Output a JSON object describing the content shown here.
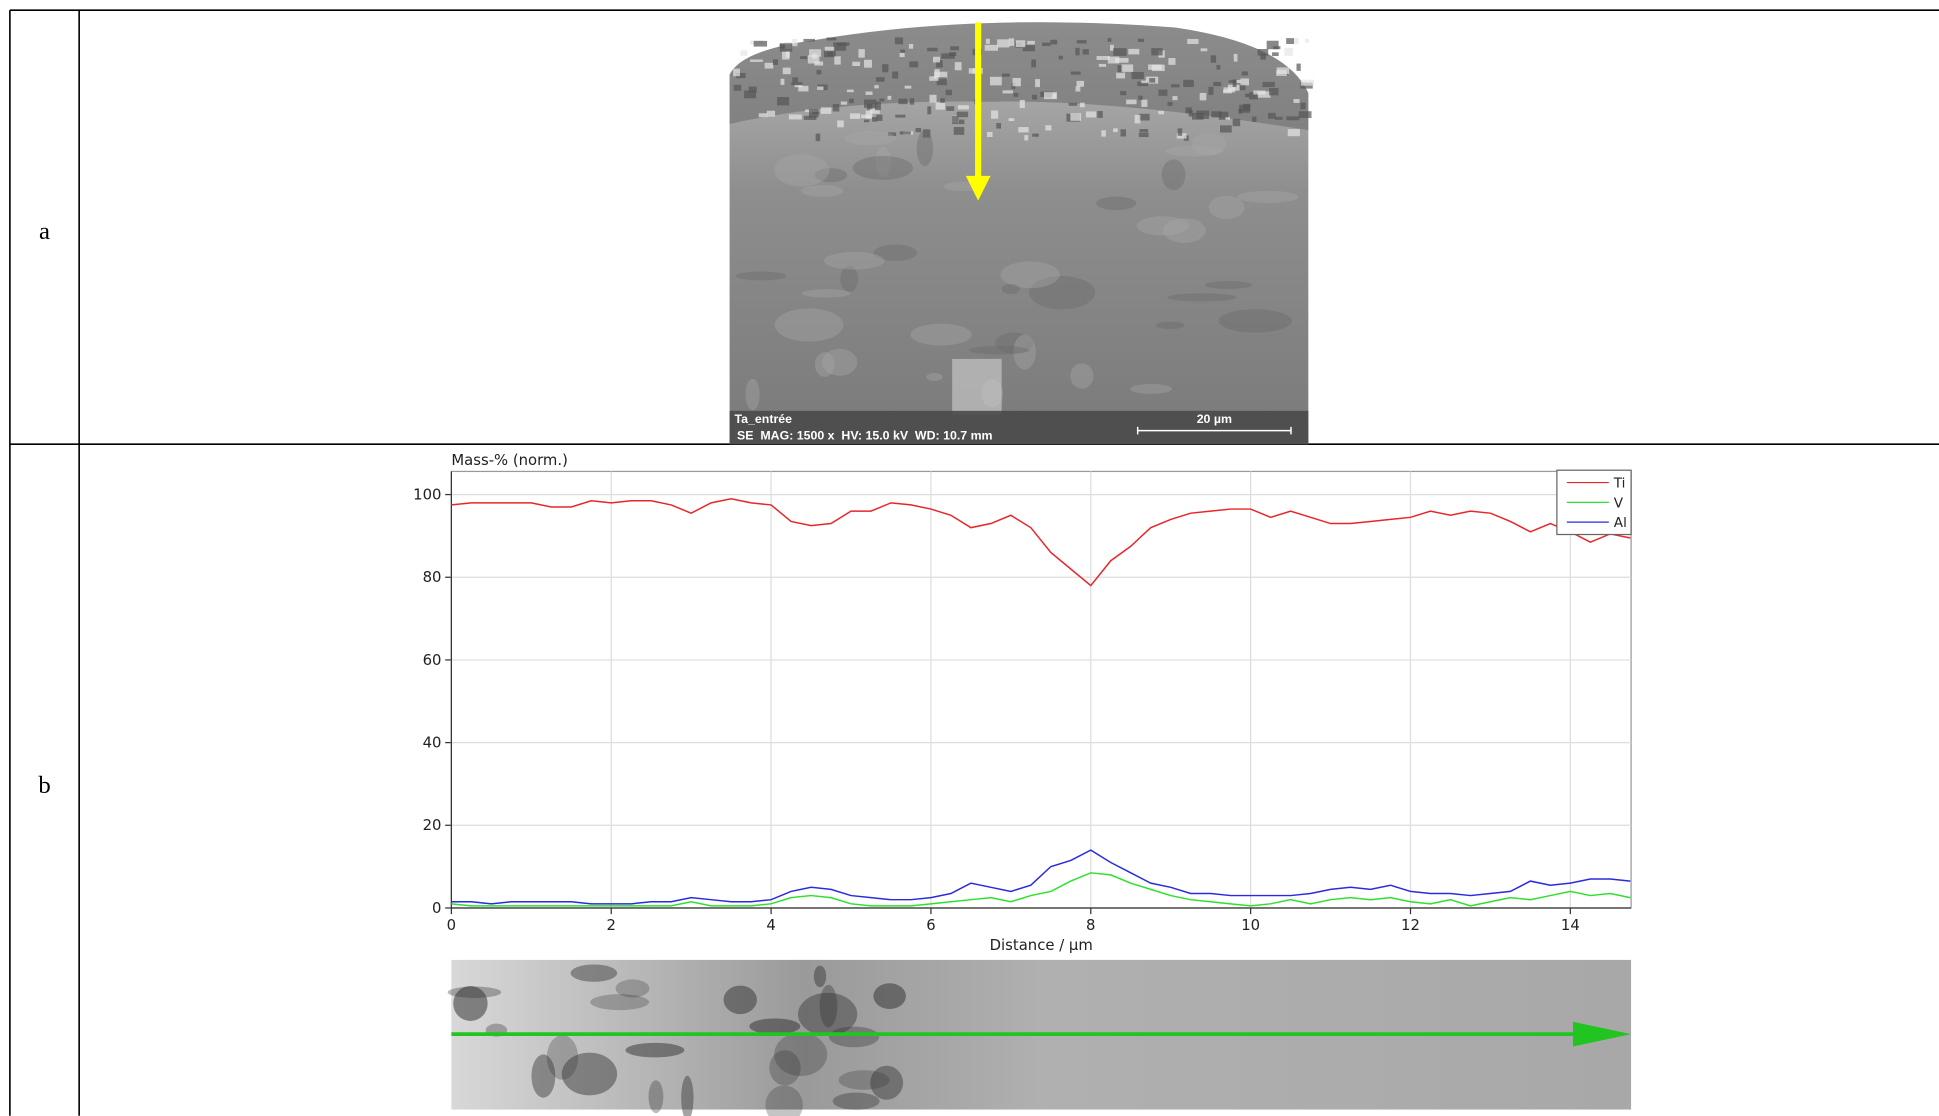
{
  "table": {
    "rows": [
      "a",
      "b"
    ]
  },
  "image": {
    "sample": "Ta_entrée",
    "info": "SE  MAG: 1500 x  HV: 15.0 kV  WD: 10.7 mm",
    "scale_bar": "20 µm"
  },
  "chart_data": {
    "type": "line",
    "y_label": "Mass-% (norm.)",
    "x_label": "Distance / µm",
    "x": [
      0,
      0.25,
      0.5,
      0.75,
      1,
      1.25,
      1.5,
      1.75,
      2,
      2.25,
      2.5,
      2.75,
      3,
      3.25,
      3.5,
      3.75,
      4,
      4.25,
      4.5,
      4.75,
      5,
      5.25,
      5.5,
      5.75,
      6,
      6.25,
      6.5,
      6.75,
      7,
      7.25,
      7.5,
      7.75,
      8,
      8.25,
      8.5,
      8.75,
      9,
      9.25,
      9.5,
      9.75,
      10,
      10.25,
      10.5,
      10.75,
      11,
      11.25,
      11.5,
      11.75,
      12,
      12.25,
      12.5,
      12.75,
      13,
      13.25,
      13.5,
      13.75,
      14,
      14.25,
      14.5,
      14.75
    ],
    "series": [
      {
        "name": "Ti",
        "color": "#e8262a",
        "values": [
          97.5,
          98,
          98,
          98,
          98,
          97,
          97,
          98.5,
          98,
          98.5,
          98.5,
          97.5,
          95.5,
          98,
          99,
          98,
          97.5,
          93.5,
          92.5,
          93,
          96,
          96,
          98,
          97.5,
          96.5,
          95,
          92,
          93,
          95,
          92,
          86,
          82,
          78,
          84,
          87.5,
          92,
          94,
          95.5,
          96,
          96.5,
          96.5,
          94.5,
          96,
          94.5,
          93,
          93,
          93.5,
          94,
          94.5,
          96,
          95,
          96,
          95.5,
          93.5,
          91,
          93,
          91,
          88.5,
          90.5,
          89.5
        ]
      },
      {
        "name": "V",
        "color": "#2ee02e",
        "values": [
          1,
          0.5,
          0.5,
          0.5,
          0.5,
          0.5,
          0.5,
          0.5,
          0.5,
          0.5,
          0.5,
          0.5,
          1.5,
          0.5,
          0.5,
          0.5,
          1,
          2.5,
          3,
          2.5,
          1,
          0.5,
          0.5,
          0.5,
          1,
          1.5,
          2,
          2.5,
          1.5,
          3,
          4,
          6.5,
          8.5,
          8,
          6,
          4.5,
          3,
          2,
          1.5,
          1,
          0.5,
          1,
          2,
          1,
          2,
          2.5,
          2,
          2.5,
          1.5,
          1,
          2,
          0.5,
          1.5,
          2.5,
          2,
          3,
          4,
          3,
          3.5,
          2.5
        ]
      },
      {
        "name": "Al",
        "color": "#2a2ae0",
        "values": [
          1.5,
          1.5,
          1,
          1.5,
          1.5,
          1.5,
          1.5,
          1,
          1,
          1,
          1.5,
          1.5,
          2.5,
          2,
          1.5,
          1.5,
          2,
          4,
          5,
          4.5,
          3,
          2.5,
          2,
          2,
          2.5,
          3.5,
          6,
          5,
          4,
          5.5,
          10,
          11.5,
          14,
          11,
          8.5,
          6,
          5,
          3.5,
          3.5,
          3,
          3,
          3,
          3,
          3.5,
          4.5,
          5,
          4.5,
          5.5,
          4,
          3.5,
          3.5,
          3,
          3.5,
          4,
          6.5,
          5.5,
          6,
          7,
          7,
          6.5
        ]
      }
    ],
    "xlim": [
      0,
      14.76
    ],
    "ylim": [
      0,
      105.6
    ],
    "xticks": [
      0,
      2,
      4,
      6,
      8,
      10,
      12,
      14
    ],
    "yticks": [
      0,
      20,
      40,
      60,
      80,
      100
    ],
    "grid": true,
    "legend": "top-right"
  }
}
